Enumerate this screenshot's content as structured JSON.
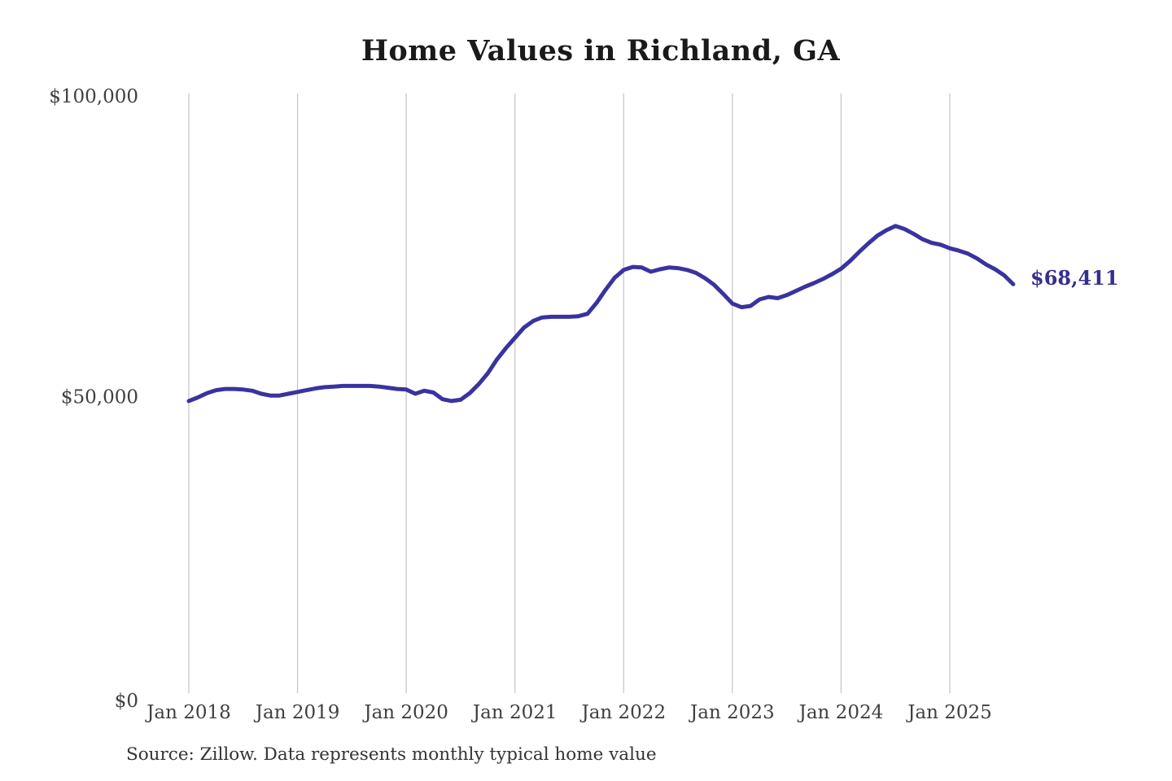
{
  "title": "Home Values in Richland, GA",
  "annotation": {
    "end_label": "$68,411"
  },
  "source": "Source: Zillow. Data represents monthly typical home value",
  "colors": {
    "line": "#3933a0",
    "end_label": "#333090",
    "grid": "#c8c8c8",
    "axis_text": "#404040",
    "title_text": "#1a1a1a",
    "source_text": "#333333",
    "background": "#ffffff"
  },
  "chart_data": {
    "type": "line",
    "title": "Home Values in Richland, GA",
    "xlabel": "",
    "ylabel": "",
    "legend": "none",
    "grid": "vertical-only",
    "ylim": [
      0,
      100000
    ],
    "y_ticks": [
      {
        "label": "$0",
        "value": 0
      },
      {
        "label": "$50,000",
        "value": 50000
      },
      {
        "label": "$100,000",
        "value": 100000
      }
    ],
    "x_tick_labels": [
      "Jan 2018",
      "Jan 2019",
      "Jan 2020",
      "Jan 2021",
      "Jan 2022",
      "Jan 2023",
      "Jan 2024",
      "Jan 2025"
    ],
    "x_tick_month_indices": [
      0,
      12,
      24,
      36,
      48,
      60,
      72,
      84
    ],
    "monthly_start": "2018-01",
    "monthly_end": "2025-08",
    "last_value": 68411,
    "series": [
      {
        "name": "Typical home value (USD)",
        "values": [
          49000,
          49600,
          50300,
          50800,
          51000,
          51000,
          50900,
          50700,
          50200,
          49900,
          49900,
          50200,
          50500,
          50800,
          51100,
          51300,
          51400,
          51500,
          51500,
          51500,
          51500,
          51400,
          51200,
          51000,
          50900,
          50200,
          50700,
          50400,
          49300,
          49000,
          49200,
          50300,
          51800,
          53600,
          55900,
          57800,
          59500,
          61200,
          62300,
          62900,
          63000,
          63000,
          63000,
          63100,
          63500,
          65300,
          67500,
          69500,
          70800,
          71300,
          71200,
          70500,
          70900,
          71200,
          71100,
          70800,
          70300,
          69400,
          68300,
          66800,
          65200,
          64600,
          64800,
          65900,
          66300,
          66100,
          66600,
          67300,
          68000,
          68600,
          69300,
          70100,
          71000,
          72300,
          73800,
          75200,
          76500,
          77400,
          78100,
          77600,
          76800,
          75900,
          75300,
          75000,
          74400,
          74000,
          73500,
          72700,
          71700,
          70900,
          69900,
          68411
        ]
      }
    ]
  }
}
